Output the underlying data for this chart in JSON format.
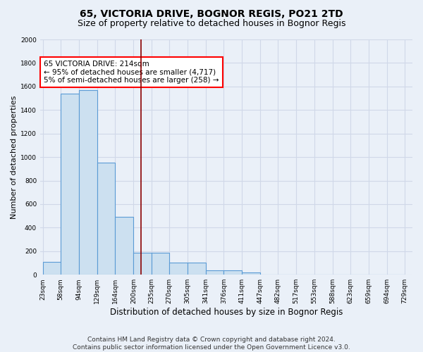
{
  "title1": "65, VICTORIA DRIVE, BOGNOR REGIS, PO21 2TD",
  "title2": "Size of property relative to detached houses in Bognor Regis",
  "xlabel": "Distribution of detached houses by size in Bognor Regis",
  "ylabel": "Number of detached properties",
  "bar_edges": [
    23,
    58,
    94,
    129,
    164,
    200,
    235,
    270,
    305,
    341,
    376,
    411,
    447,
    482,
    517,
    553,
    588,
    623,
    659,
    694,
    729
  ],
  "bar_heights": [
    110,
    1540,
    1570,
    950,
    490,
    185,
    185,
    100,
    100,
    35,
    35,
    20,
    0,
    0,
    0,
    0,
    0,
    0,
    0,
    0
  ],
  "bar_color": "#cce0f0",
  "bar_edge_color": "#5b9bd5",
  "bar_linewidth": 0.8,
  "vline_x": 214,
  "vline_color": "#8b0000",
  "vline_linewidth": 1.2,
  "annotation_text": "65 VICTORIA DRIVE: 214sqm\n← 95% of detached houses are smaller (4,717)\n5% of semi-detached houses are larger (258) →",
  "annotation_fontsize": 7.5,
  "annotation_box_color": "white",
  "annotation_box_edgecolor": "red",
  "ylim": [
    0,
    2000
  ],
  "yticks": [
    0,
    200,
    400,
    600,
    800,
    1000,
    1200,
    1400,
    1600,
    1800,
    2000
  ],
  "bg_color": "#eaf0f8",
  "plot_bg_color": "#eaf0f8",
  "grid_color": "#d0d8e8",
  "footer": "Contains HM Land Registry data © Crown copyright and database right 2024.\nContains public sector information licensed under the Open Government Licence v3.0.",
  "title1_fontsize": 10,
  "title2_fontsize": 9,
  "xlabel_fontsize": 8.5,
  "ylabel_fontsize": 8,
  "tick_fontsize": 6.5,
  "footer_fontsize": 6.5
}
